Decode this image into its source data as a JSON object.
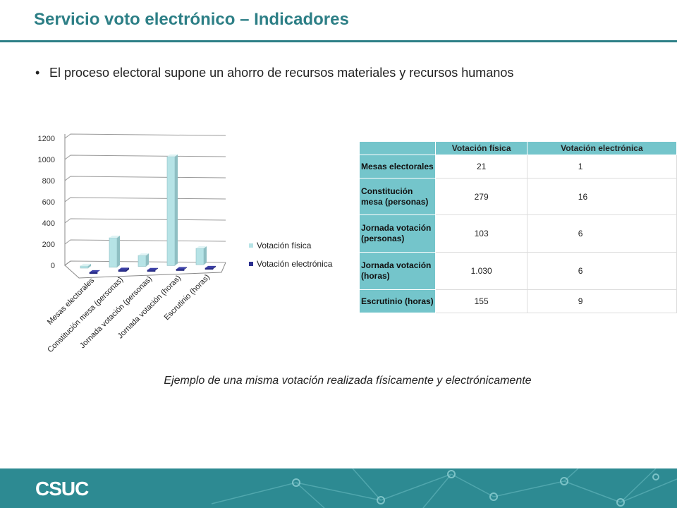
{
  "slide": {
    "title": "Servicio voto electrónico – Indicadores",
    "bullet": "El proceso electoral supone un ahorro de recursos materiales y recursos humanos",
    "caption": "Ejemplo de una misma votación realizada físicamente y electrónicamente",
    "logo": "CSUC"
  },
  "colors": {
    "accent": "#2d7f86",
    "series_fisica": "#b6e3e6",
    "series_electronica": "#2b2f8f",
    "table_header": "#74c5cb",
    "footer": "#2d8a92"
  },
  "table": {
    "headers": [
      "",
      "Votación física",
      "Votación electrónica"
    ],
    "rows": [
      {
        "label": "Mesas electorales",
        "fisica": "21",
        "electronica": "1"
      },
      {
        "label": "Constitución mesa (personas)",
        "fisica": "279",
        "electronica": "16"
      },
      {
        "label": "Jornada votación (personas)",
        "fisica": "103",
        "electronica": "6"
      },
      {
        "label": "Jornada votación (horas)",
        "fisica": "1.030",
        "electronica": "6"
      },
      {
        "label": "Escrutinio (horas)",
        "fisica": "155",
        "electronica": "9"
      }
    ]
  },
  "chart_data": {
    "type": "bar",
    "categories": [
      "Mesas electorales",
      "Constitución mesa (personas)",
      "Jornada votación (personas)",
      "Jornada votación (horas)",
      "Escrutinio (horas)"
    ],
    "series": [
      {
        "name": "Votación física",
        "values": [
          21,
          279,
          103,
          1030,
          155
        ]
      },
      {
        "name": "Votación electrónica",
        "values": [
          1,
          16,
          6,
          6,
          9
        ]
      }
    ],
    "yticks": [
      "0",
      "200",
      "400",
      "600",
      "800",
      "1000",
      "1200"
    ],
    "ylim": [
      0,
      1200
    ],
    "grid": true,
    "legend": "right"
  }
}
